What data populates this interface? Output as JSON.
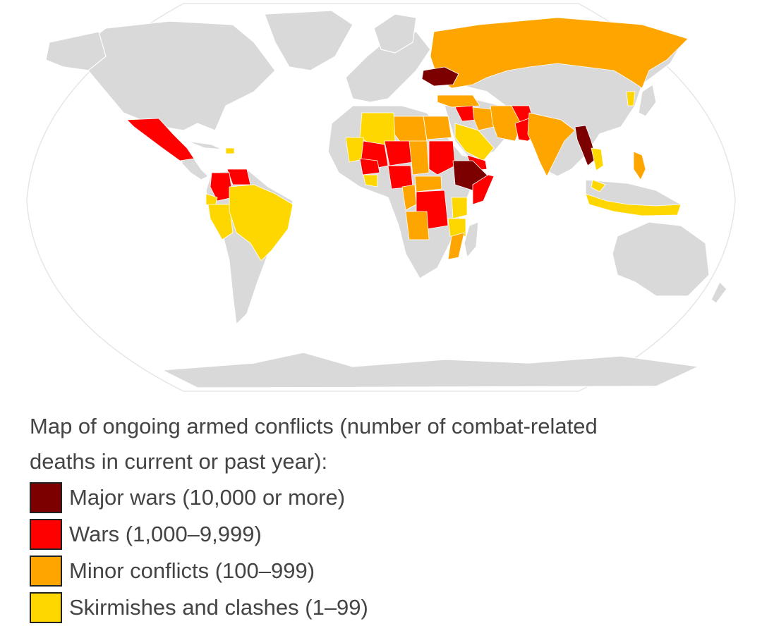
{
  "caption": {
    "line1": "Map of ongoing armed conflicts (number of combat-related",
    "line2": "deaths in current or past year):"
  },
  "legend": [
    {
      "label": "Major wars (10,000 or more)",
      "color": "#7d0000",
      "key": "major"
    },
    {
      "label": "Wars (1,000–9,999)",
      "color": "#ff0000",
      "key": "war"
    },
    {
      "label": "Minor conflicts (100–999)",
      "color": "#ffa500",
      "key": "minor"
    },
    {
      "label": "Skirmishes and clashes (1–99)",
      "color": "#ffd700",
      "key": "skirmish"
    }
  ],
  "map": {
    "land_color": "#d9d9d9",
    "ocean_color": "#ffffff",
    "regions": [
      {
        "name": "Ukraine",
        "category": "major"
      },
      {
        "name": "Myanmar",
        "category": "major"
      },
      {
        "name": "Ethiopia",
        "category": "major"
      },
      {
        "name": "Mexico",
        "category": "war"
      },
      {
        "name": "Colombia",
        "category": "war"
      },
      {
        "name": "Venezuela",
        "category": "war"
      },
      {
        "name": "Mali",
        "category": "war"
      },
      {
        "name": "Burkina Faso",
        "category": "war"
      },
      {
        "name": "Niger",
        "category": "war"
      },
      {
        "name": "Nigeria",
        "category": "war"
      },
      {
        "name": "Sudan",
        "category": "war"
      },
      {
        "name": "DR Congo",
        "category": "war"
      },
      {
        "name": "Somalia",
        "category": "war"
      },
      {
        "name": "Yemen",
        "category": "war"
      },
      {
        "name": "Syria",
        "category": "war"
      },
      {
        "name": "Afghanistan",
        "category": "war"
      },
      {
        "name": "Pakistan",
        "category": "war"
      },
      {
        "name": "Russia",
        "category": "minor"
      },
      {
        "name": "Libya",
        "category": "minor"
      },
      {
        "name": "Egypt",
        "category": "minor"
      },
      {
        "name": "Chad",
        "category": "minor"
      },
      {
        "name": "Iran",
        "category": "minor"
      },
      {
        "name": "Iraq",
        "category": "minor"
      },
      {
        "name": "Turkey",
        "category": "minor"
      },
      {
        "name": "India",
        "category": "minor"
      },
      {
        "name": "Cameroon",
        "category": "minor"
      },
      {
        "name": "Central African Republic",
        "category": "minor"
      },
      {
        "name": "Angola",
        "category": "minor"
      },
      {
        "name": "Mozambique",
        "category": "minor"
      },
      {
        "name": "Philippines",
        "category": "minor"
      },
      {
        "name": "Algeria",
        "category": "skirmish"
      },
      {
        "name": "Mauritania",
        "category": "skirmish"
      },
      {
        "name": "Saudi Arabia",
        "category": "skirmish"
      },
      {
        "name": "Brazil",
        "category": "skirmish"
      },
      {
        "name": "Peru",
        "category": "skirmish"
      },
      {
        "name": "Ecuador",
        "category": "skirmish"
      },
      {
        "name": "Kenya",
        "category": "skirmish"
      },
      {
        "name": "Tanzania",
        "category": "skirmish"
      },
      {
        "name": "Indonesia",
        "category": "skirmish"
      },
      {
        "name": "Thailand",
        "category": "skirmish"
      },
      {
        "name": "Malaysia",
        "category": "skirmish"
      },
      {
        "name": "Korea",
        "category": "skirmish"
      },
      {
        "name": "Haiti",
        "category": "skirmish"
      },
      {
        "name": "Ivory Coast",
        "category": "skirmish"
      }
    ]
  }
}
